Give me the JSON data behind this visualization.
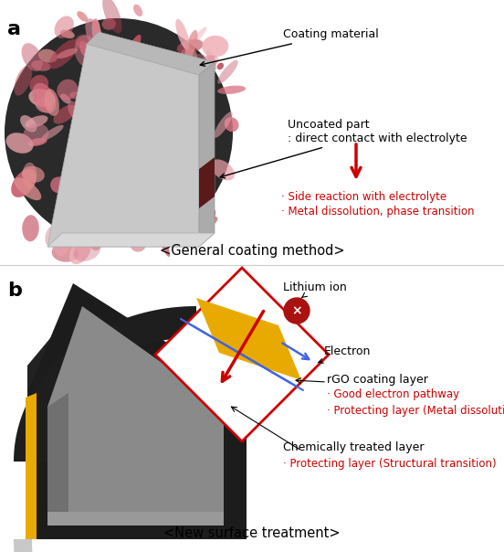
{
  "fig_width": 5.52,
  "fig_height": 6.04,
  "dpi": 100,
  "bg_color": "#ffffff",
  "red": "#cc0000",
  "black": "#111111",
  "panel_a": {
    "label": "a",
    "subtitle": "<General coating method>",
    "ann1_text": "Coating material",
    "ann2_text": "Uncoated part\n: direct contact with electrolyte",
    "bullet1": "· Side reaction with electrolyte",
    "bullet2": "· Metal dissolution, phase transition"
  },
  "panel_b": {
    "label": "b",
    "subtitle": "<New surface treatment>",
    "ann_li": "Lithium ion",
    "ann_el": "Electron",
    "ann_rgo": "rGO coating layer",
    "bullet_rgo1": "· Good electron pathway",
    "bullet_rgo2": "· Protecting layer (Metal dissolution)",
    "ann_chem": "Chemically treated layer",
    "bullet_chem": "· Protecting layer (Structural transition)"
  }
}
